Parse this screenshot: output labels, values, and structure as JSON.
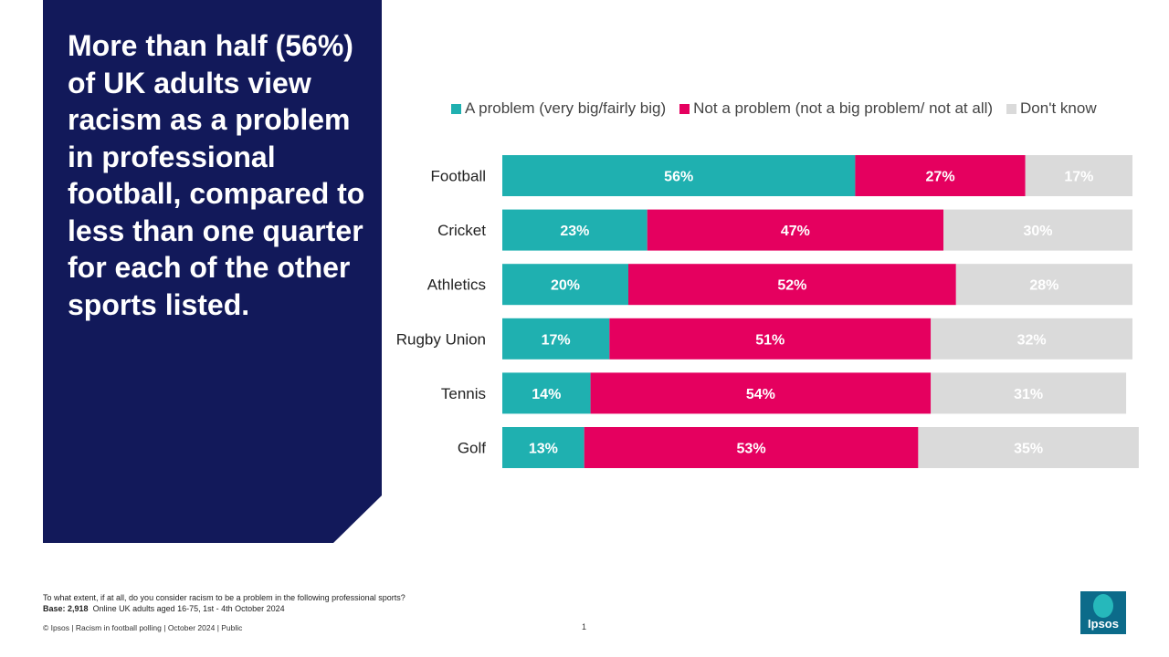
{
  "headline": "More than half (56%) of UK adults view racism as a problem in professional football, compared to less than one quarter for each of the other sports listed.",
  "chart_data": {
    "type": "bar",
    "orientation": "horizontal",
    "stacked": true,
    "categories": [
      "Football",
      "Cricket",
      "Athletics",
      "Rugby Union",
      "Tennis",
      "Golf"
    ],
    "series": [
      {
        "name": "A problem (very big/fairly big)",
        "color": "#1fb0b0",
        "values": [
          56,
          23,
          20,
          17,
          14,
          13
        ]
      },
      {
        "name": "Not a problem (not a big problem/ not at all)",
        "color": "#e5005f",
        "values": [
          27,
          47,
          52,
          51,
          54,
          53
        ]
      },
      {
        "name": "Don't know",
        "color": "#dadada",
        "values": [
          17,
          30,
          28,
          32,
          31,
          35
        ]
      }
    ],
    "value_suffix": "%",
    "xlim": [
      0,
      100
    ],
    "legend_position": "top"
  },
  "footnote": {
    "question": "To what extent, if at all, do you consider racism to be a problem in the following professional sports?",
    "base_label": "Base: 2,918",
    "base_detail": "Online UK adults aged 16-75, 1st - 4th October 2024"
  },
  "footer": {
    "copyright": "© Ipsos | Racism in football polling | October 2024 | Public",
    "page_number": "1"
  },
  "logo": {
    "text": "Ipsos"
  }
}
